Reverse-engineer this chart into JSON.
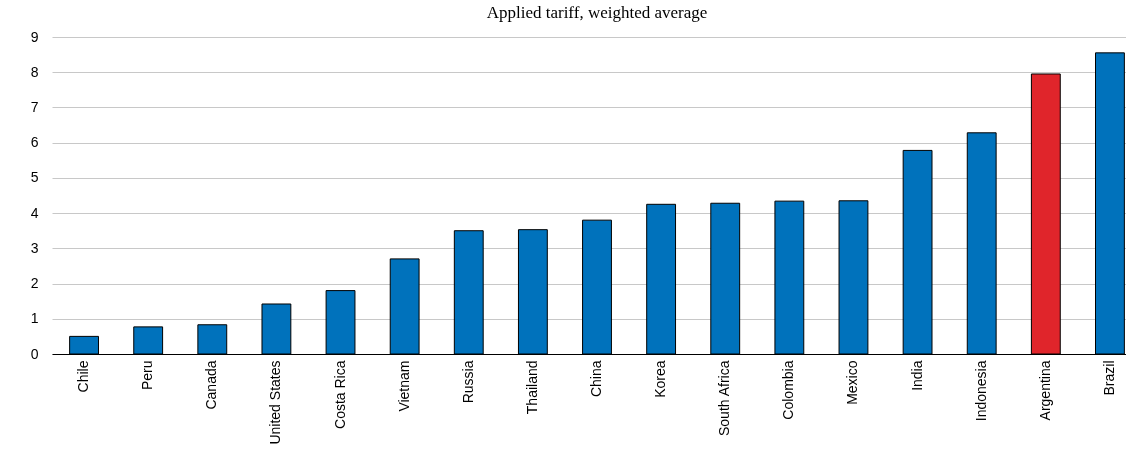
{
  "chart_data": {
    "type": "bar",
    "title": "Applied tariff, weighted average",
    "categories": [
      "Chile",
      "Peru",
      "Canada",
      "United States",
      "Costa Rica",
      "Vietnam",
      "Russia",
      "Thailand",
      "China",
      "Korea",
      "South Africa",
      "Colombia",
      "Mexico",
      "India",
      "Indonesia",
      "Argentina",
      "Brazil"
    ],
    "values": [
      0.5,
      0.77,
      0.83,
      1.42,
      1.8,
      2.7,
      3.5,
      3.53,
      3.8,
      4.25,
      4.28,
      4.34,
      4.35,
      5.78,
      6.28,
      7.95,
      8.55
    ],
    "colors": [
      "#0072bc",
      "#0072bc",
      "#0072bc",
      "#0072bc",
      "#0072bc",
      "#0072bc",
      "#0072bc",
      "#0072bc",
      "#0072bc",
      "#0072bc",
      "#0072bc",
      "#0072bc",
      "#0072bc",
      "#0072bc",
      "#0072bc",
      "#e0252b",
      "#0072bc"
    ],
    "ylim": [
      0,
      9
    ],
    "yticks": [
      0,
      1,
      2,
      3,
      4,
      5,
      6,
      7,
      8,
      9
    ],
    "grid": "y"
  }
}
